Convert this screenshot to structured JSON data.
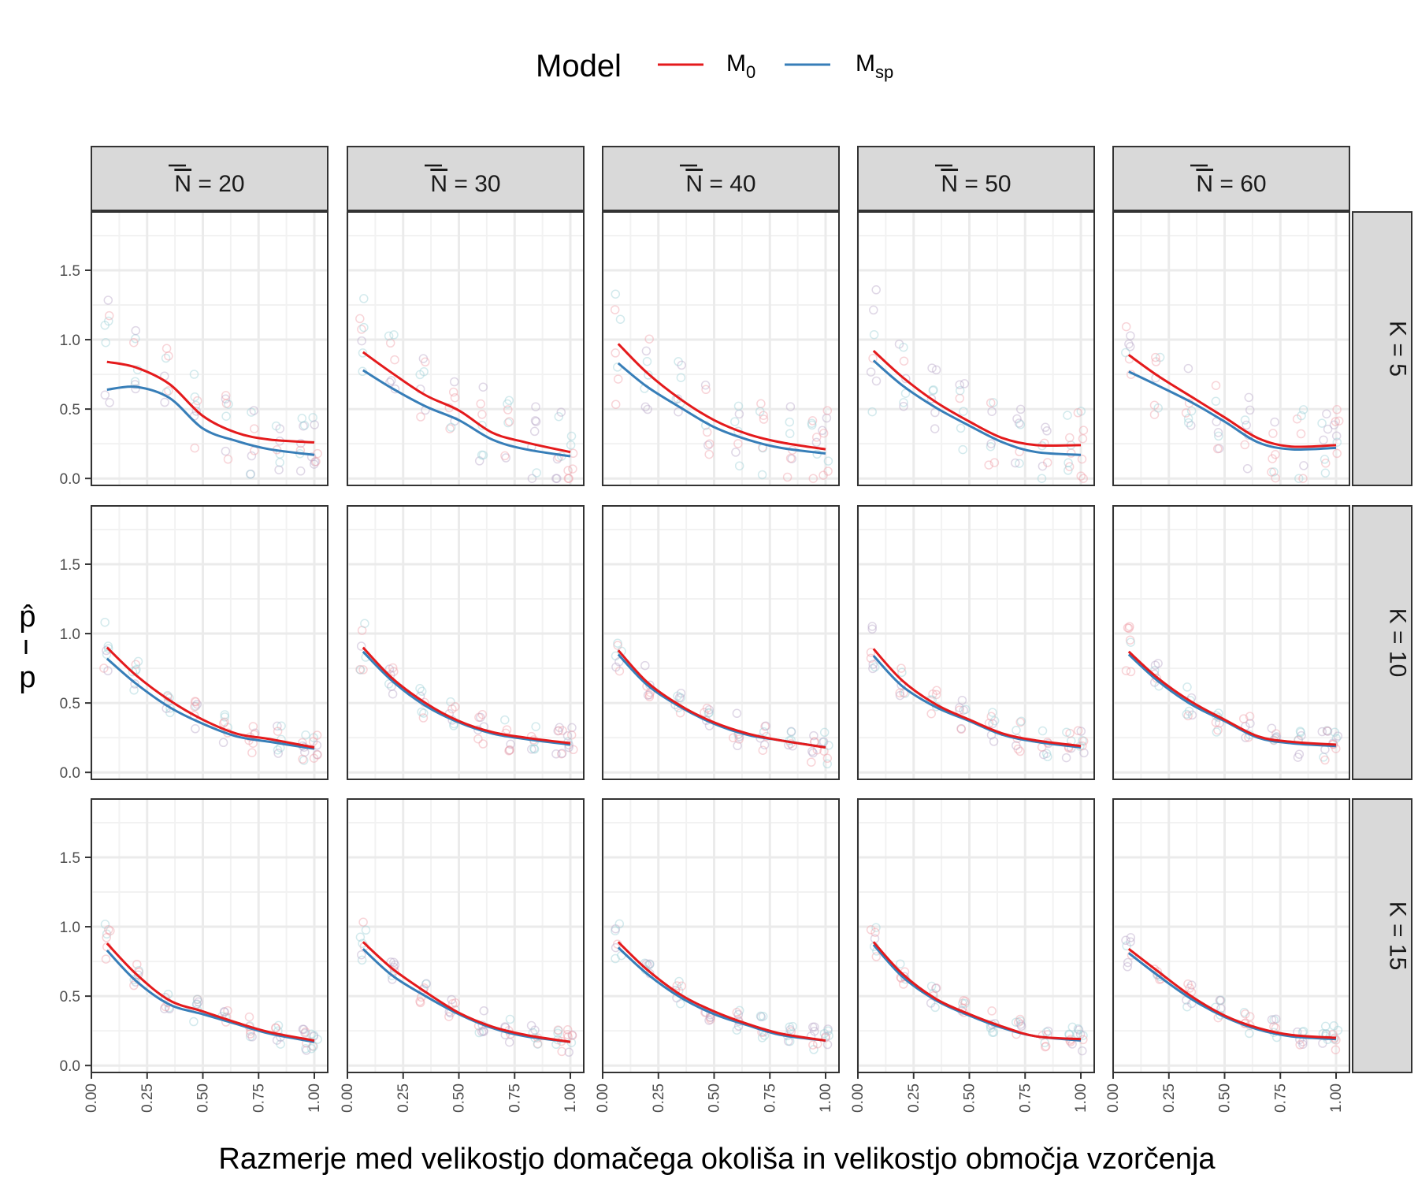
{
  "chart_data": {
    "type": "line",
    "legend": {
      "title": "Model",
      "placement": "top",
      "entries": [
        {
          "id": "M0",
          "base": "M",
          "sub": "0",
          "color": "#e41a1c"
        },
        {
          "id": "Msp",
          "base": "M",
          "sub": "sp",
          "color": "#377eb8"
        }
      ]
    },
    "xlabel": "Razmerje med velikostjo domačega okoliša in velikostjo območja vzorčenja",
    "ylabel": {
      "numerator": "p̂",
      "denominator": "p"
    },
    "xlim": [
      0,
      1.06
    ],
    "ylim": [
      -0.05,
      1.92
    ],
    "x_ticks": [
      "0.00",
      "0.25",
      "0.50",
      "0.75",
      "1.00"
    ],
    "x_tick_values": [
      0,
      0.25,
      0.5,
      0.75,
      1.0
    ],
    "y_ticks": [
      "0.0",
      "0.5",
      "1.0",
      "1.5"
    ],
    "y_tick_values": [
      0,
      0.5,
      1.0,
      1.5
    ],
    "grid": true,
    "col_facets": [
      {
        "label_var": "N",
        "label_rest": " = 20"
      },
      {
        "label_var": "N",
        "label_rest": " = 30"
      },
      {
        "label_var": "N",
        "label_rest": " = 40"
      },
      {
        "label_var": "N",
        "label_rest": " = 50"
      },
      {
        "label_var": "N",
        "label_rest": " = 60"
      }
    ],
    "row_facets": [
      "K = 5",
      "K = 10",
      "K = 15"
    ],
    "x": [
      0.07,
      0.2,
      0.35,
      0.5,
      0.65,
      0.8,
      1.0
    ],
    "panels": [
      [
        {
          "M0": [
            0.84,
            0.8,
            0.68,
            0.45,
            0.33,
            0.28,
            0.26
          ],
          "Msp": [
            0.64,
            0.66,
            0.58,
            0.36,
            0.27,
            0.21,
            0.17
          ]
        },
        {
          "M0": [
            0.91,
            0.76,
            0.6,
            0.49,
            0.33,
            0.26,
            0.19
          ],
          "Msp": [
            0.78,
            0.65,
            0.52,
            0.42,
            0.28,
            0.21,
            0.16
          ]
        },
        {
          "M0": [
            0.97,
            0.76,
            0.57,
            0.42,
            0.32,
            0.26,
            0.21
          ],
          "Msp": [
            0.83,
            0.66,
            0.51,
            0.37,
            0.28,
            0.22,
            0.18
          ]
        },
        {
          "M0": [
            0.92,
            0.73,
            0.55,
            0.41,
            0.29,
            0.24,
            0.24
          ],
          "Msp": [
            0.85,
            0.67,
            0.51,
            0.38,
            0.26,
            0.19,
            0.17
          ]
        },
        {
          "M0": [
            0.89,
            0.74,
            0.59,
            0.44,
            0.29,
            0.23,
            0.24
          ],
          "Msp": [
            0.77,
            0.67,
            0.55,
            0.41,
            0.26,
            0.21,
            0.22
          ]
        }
      ],
      [
        {
          "M0": [
            0.9,
            0.7,
            0.52,
            0.38,
            0.28,
            0.24,
            0.18
          ],
          "Msp": [
            0.82,
            0.64,
            0.47,
            0.35,
            0.26,
            0.22,
            0.17
          ]
        },
        {
          "M0": [
            0.9,
            0.68,
            0.5,
            0.37,
            0.29,
            0.25,
            0.21
          ],
          "Msp": [
            0.87,
            0.66,
            0.48,
            0.36,
            0.28,
            0.24,
            0.2
          ]
        },
        {
          "M0": [
            0.88,
            0.65,
            0.48,
            0.36,
            0.28,
            0.23,
            0.18
          ],
          "Msp": [
            0.85,
            0.63,
            0.47,
            0.35,
            0.27,
            0.23,
            0.18
          ]
        },
        {
          "M0": [
            0.89,
            0.66,
            0.49,
            0.38,
            0.28,
            0.23,
            0.19
          ],
          "Msp": [
            0.84,
            0.62,
            0.47,
            0.37,
            0.27,
            0.22,
            0.18
          ]
        },
        {
          "M0": [
            0.87,
            0.68,
            0.51,
            0.38,
            0.26,
            0.22,
            0.2
          ],
          "Msp": [
            0.85,
            0.66,
            0.49,
            0.37,
            0.25,
            0.21,
            0.19
          ]
        }
      ],
      [
        {
          "M0": [
            0.88,
            0.66,
            0.47,
            0.39,
            0.31,
            0.24,
            0.18
          ],
          "Msp": [
            0.83,
            0.61,
            0.44,
            0.37,
            0.3,
            0.23,
            0.17
          ]
        },
        {
          "M0": [
            0.89,
            0.7,
            0.53,
            0.38,
            0.28,
            0.22,
            0.17
          ],
          "Msp": [
            0.84,
            0.65,
            0.5,
            0.37,
            0.27,
            0.21,
            0.17
          ]
        },
        {
          "M0": [
            0.89,
            0.69,
            0.51,
            0.39,
            0.3,
            0.23,
            0.18
          ],
          "Msp": [
            0.85,
            0.66,
            0.49,
            0.37,
            0.29,
            0.22,
            0.18
          ]
        },
        {
          "M0": [
            0.89,
            0.66,
            0.48,
            0.37,
            0.28,
            0.21,
            0.19
          ],
          "Msp": [
            0.87,
            0.64,
            0.47,
            0.36,
            0.27,
            0.21,
            0.18
          ]
        },
        {
          "M0": [
            0.84,
            0.68,
            0.5,
            0.36,
            0.27,
            0.22,
            0.2
          ],
          "Msp": [
            0.81,
            0.65,
            0.48,
            0.35,
            0.26,
            0.21,
            0.19
          ]
        }
      ]
    ],
    "series_colors": {
      "M0": "#e41a1c",
      "Msp": "#377eb8"
    },
    "point_colors": {
      "M0": "#f0a0a8",
      "Msp": "#9ed0d6",
      "mix": "#b8a6c8"
    }
  }
}
